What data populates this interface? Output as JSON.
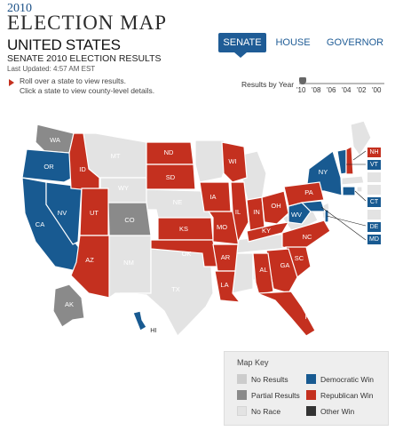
{
  "header": {
    "year": "2010",
    "title": "ELECTION MAP",
    "region": "UNITED STATES",
    "race": "SENATE 2010 ELECTION RESULTS",
    "updated": "Last Updated: 4:57 AM EST"
  },
  "tabs": [
    "SENATE",
    "HOUSE",
    "GOVERNOR"
  ],
  "active_tab": "SENATE",
  "instructions": [
    "Roll over a state to view results.",
    "Click a state to view county-level details."
  ],
  "year_selector": {
    "label": "Results by Year",
    "years": [
      "'10",
      "'08",
      "'06",
      "'04",
      "'02",
      "'00"
    ],
    "selected": "'10"
  },
  "colors": {
    "republican": "#c4301f",
    "democratic": "#185a91",
    "partial": "#8a8a8a",
    "no_results": "#cccccc",
    "no_race": "#e3e3e3",
    "other": "#333333",
    "accent": "#1f5c96"
  },
  "map_labels": {
    "WA": "WA",
    "OR": "OR",
    "CA": "CA",
    "NV": "NV",
    "ID": "ID",
    "UT": "UT",
    "AZ": "AZ",
    "CO": "CO",
    "ND": "ND",
    "SD": "SD",
    "KS": "KS",
    "OK": "OK",
    "IA": "IA",
    "MO": "MO",
    "AR": "AR",
    "LA": "LA",
    "WI": "WI",
    "IL": "IL",
    "IN": "IN",
    "KY": "KY",
    "OH": "OH",
    "PA": "PA",
    "WV": "WV",
    "NC": "NC",
    "SC": "SC",
    "GA": "GA",
    "AL": "AL",
    "FL": "FL",
    "NY": "NY",
    "AK": "AK",
    "HI": "HI",
    "MT": "MT",
    "WY": "WY",
    "NM": "NM",
    "TX": "TX",
    "NE": "NE"
  },
  "side_tags": {
    "NH": "NH",
    "VT": "VT",
    "CT": "CT",
    "DE": "DE",
    "MD": "MD"
  },
  "legend": {
    "title": "Map Key",
    "items": [
      "No Results",
      "Partial Results",
      "No Race",
      "Democratic Win",
      "Republican Win",
      "Other Win"
    ]
  }
}
